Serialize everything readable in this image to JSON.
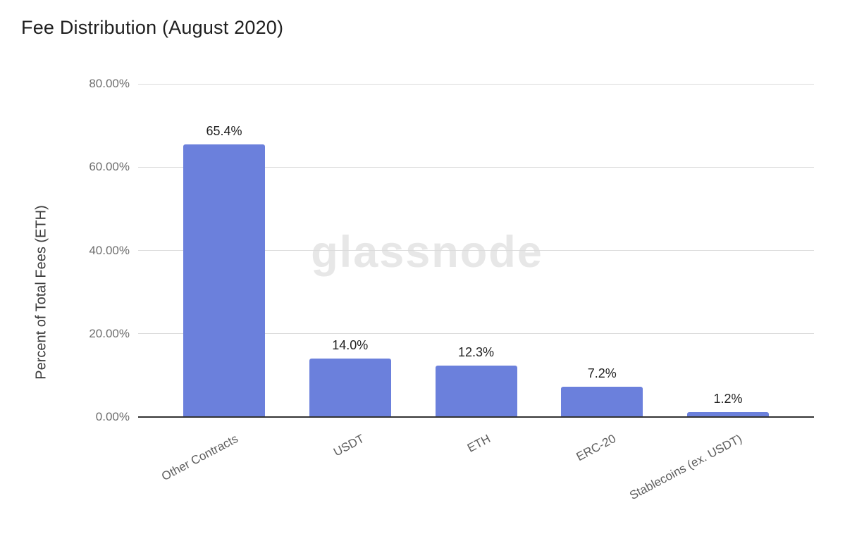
{
  "title": "Fee Distribution (August 2020)",
  "watermark": "glassnode",
  "chart_data": {
    "type": "bar",
    "title": "Fee Distribution (August 2020)",
    "categories": [
      "Other Contracts",
      "USDT",
      "ETH",
      "ERC-20",
      "Stablecoins (ex. USDT)"
    ],
    "values": [
      65.4,
      14.0,
      12.3,
      7.2,
      1.2
    ],
    "value_labels": [
      "65.4%",
      "14.0%",
      "12.3%",
      "7.2%",
      "1.2%"
    ],
    "xlabel": "",
    "ylabel": "Percent of Total Fees (ETH)",
    "ylim": [
      0,
      80
    ],
    "yticks": [
      80,
      60,
      40,
      20,
      0
    ],
    "ytick_labels": [
      "80.00%",
      "60.00%",
      "40.00%",
      "20.00%",
      "0.00%"
    ],
    "grid": true,
    "legend_position": "none",
    "bar_color": "#6b80dc"
  },
  "colors": {
    "bar": "#6b80dc",
    "title_text": "#1f1f1f",
    "axis_title_text": "#3b3b3b",
    "tick_text": "#6e6e6e",
    "category_text": "#5e5e5e",
    "gridline": "#dbdbdb",
    "baseline": "#333333",
    "watermark": "#e7e7e7",
    "background": "#ffffff"
  }
}
